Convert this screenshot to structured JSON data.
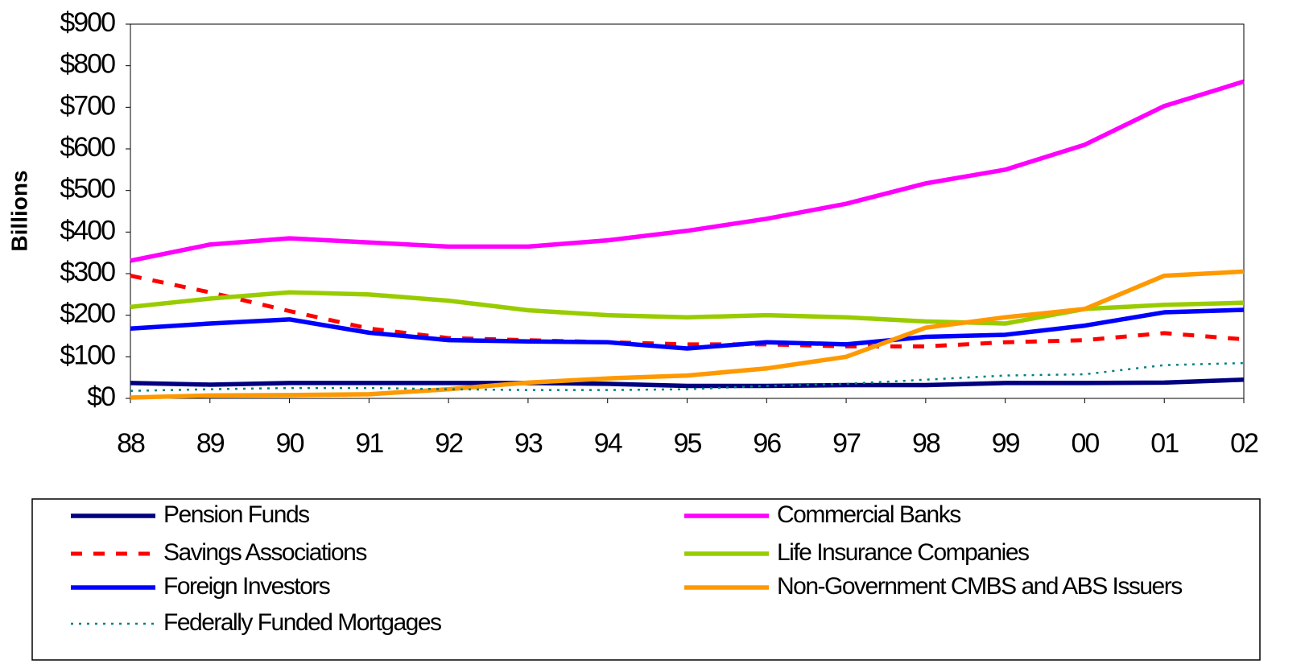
{
  "chart_data": {
    "type": "line",
    "y_label": "Billions",
    "categories": [
      "88",
      "89",
      "90",
      "91",
      "92",
      "93",
      "94",
      "95",
      "96",
      "97",
      "98",
      "99",
      "00",
      "01",
      "02"
    ],
    "ylim": [
      0,
      900
    ],
    "yticks": [
      {
        "value": 0,
        "label": "$0"
      },
      {
        "value": 100,
        "label": "$100"
      },
      {
        "value": 200,
        "label": "$200"
      },
      {
        "value": 300,
        "label": "$300"
      },
      {
        "value": 400,
        "label": "$400"
      },
      {
        "value": 500,
        "label": "$500"
      },
      {
        "value": 600,
        "label": "$600"
      },
      {
        "value": 700,
        "label": "$700"
      },
      {
        "value": 800,
        "label": "$800"
      },
      {
        "value": 900,
        "label": "$900"
      }
    ],
    "series": [
      {
        "name": "Pension Funds",
        "color": "#000080",
        "dash": "solid",
        "values": [
          37,
          33,
          37,
          37,
          37,
          37,
          35,
          30,
          30,
          32,
          32,
          37,
          37,
          38,
          45
        ]
      },
      {
        "name": "Commercial Banks",
        "color": "#ff00ff",
        "dash": "solid",
        "values": [
          331,
          370,
          385,
          375,
          365,
          365,
          380,
          403,
          432,
          468,
          517,
          550,
          610,
          703,
          762
        ]
      },
      {
        "name": "Savings Associations",
        "color": "#ff0000",
        "dash": "dashed",
        "values": [
          295,
          255,
          210,
          168,
          145,
          140,
          135,
          130,
          130,
          125,
          125,
          135,
          140,
          157,
          142
        ]
      },
      {
        "name": "Life Insurance Companies",
        "color": "#99cc00",
        "dash": "solid",
        "values": [
          220,
          240,
          255,
          250,
          235,
          212,
          200,
          195,
          200,
          195,
          185,
          180,
          215,
          225,
          230
        ]
      },
      {
        "name": "Foreign Investors",
        "color": "#0000ff",
        "dash": "solid",
        "values": [
          168,
          180,
          190,
          158,
          140,
          137,
          135,
          120,
          135,
          130,
          148,
          153,
          175,
          207,
          213
        ]
      },
      {
        "name": "Non-Government CMBS and ABS Issuers",
        "color": "#ff9900",
        "dash": "solid",
        "values": [
          2,
          7,
          8,
          10,
          22,
          38,
          48,
          55,
          72,
          100,
          170,
          195,
          215,
          295,
          305
        ]
      },
      {
        "name": "Federally Funded Mortgages",
        "color": "#008080",
        "dash": "dotted",
        "values": [
          18,
          22,
          25,
          25,
          22,
          20,
          20,
          22,
          30,
          35,
          45,
          55,
          58,
          80,
          85
        ]
      }
    ]
  }
}
